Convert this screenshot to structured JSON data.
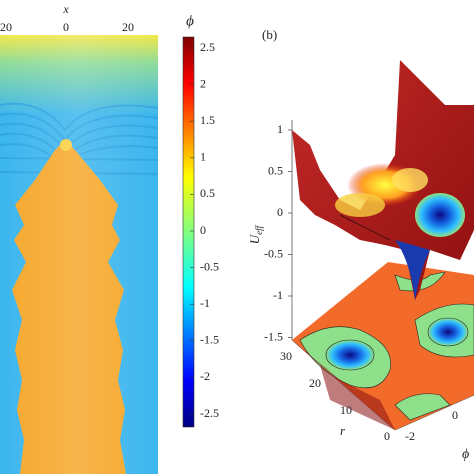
{
  "panel_a": {
    "x_label": "x",
    "x_ticks": [
      "20",
      "0",
      "20"
    ],
    "colorbar": {
      "label": "ϕ",
      "ticks": [
        "2.5",
        "2",
        "1.5",
        "1",
        "0.5",
        "0",
        "-0.5",
        "-1",
        "-1.5",
        "-2",
        "-2.5"
      ]
    }
  },
  "panel_b": {
    "label": "(b)",
    "z_label": {
      "main": "U",
      "sub": "eff"
    },
    "z_ticks": [
      "1",
      "0.5",
      "0",
      "-0.5",
      "-1",
      "-1.5"
    ],
    "r_label": "r",
    "r_ticks": [
      "30",
      "20",
      "10",
      "0"
    ],
    "phi_label": "ϕ",
    "phi_ticks": [
      "-2",
      "0"
    ]
  }
}
